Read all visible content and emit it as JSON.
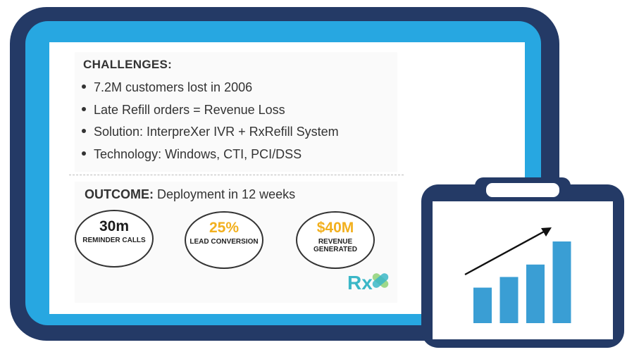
{
  "challenges": {
    "title": "CHALLENGES:",
    "items": [
      "7.2M customers lost in 2006",
      "Late Refill orders = Revenue Loss",
      "Solution: InterpreXer IVR + RxRefill System",
      "Technology: Windows, CTI, PCI/DSS"
    ]
  },
  "outcome": {
    "label": "OUTCOME:",
    "text": " Deployment in 12 weeks",
    "stats": [
      {
        "value": "30m",
        "label": "REMINDER CALLS",
        "color": "#1a1a1a"
      },
      {
        "value": "25%",
        "label": "LEAD CONVERSION",
        "color": "#f2b01e"
      },
      {
        "value": "$40M",
        "label": "REVENUE GENERATED",
        "color": "#f2b01e"
      }
    ]
  },
  "logo": {
    "text": "Rx",
    "color_primary": "#3bb7c7",
    "color_accent": "#9fd88a"
  },
  "colors": {
    "frame": "#243a66",
    "screen_border": "#27a7e1",
    "bars": "#3a9ed4"
  },
  "icons": {
    "clipboard": "clipboard-chart-icon",
    "arrow": "trend-up-arrow-icon"
  },
  "chart_data": {
    "type": "bar",
    "categories": [
      "",
      "",
      "",
      ""
    ],
    "values": [
      2,
      2.6,
      3.3,
      4.6
    ],
    "title": "",
    "trend": "up"
  }
}
